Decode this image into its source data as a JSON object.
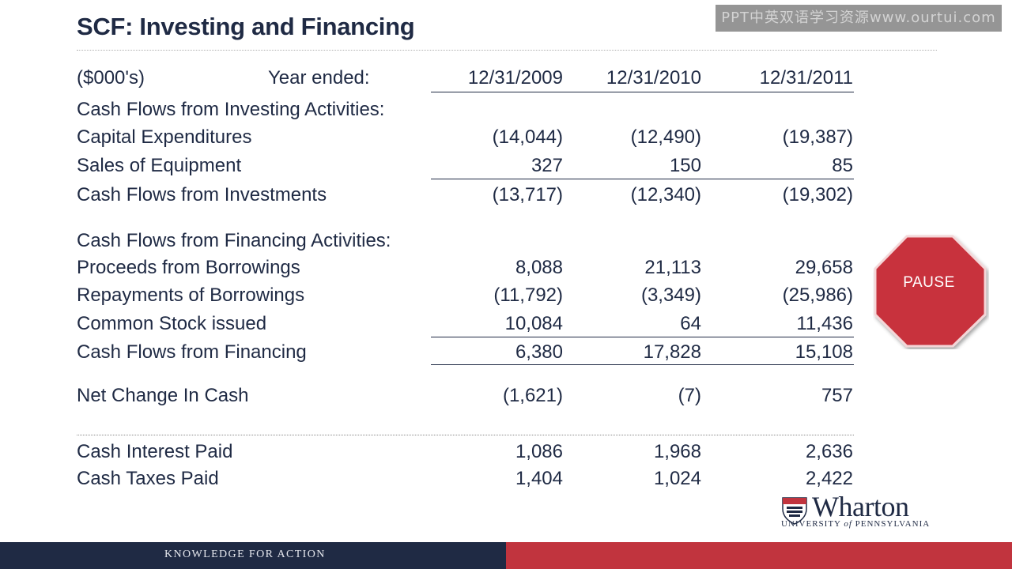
{
  "slide": {
    "title": "SCF: Investing and Financing",
    "watermark": "PPT中英双语学习资源www.ourtui.com",
    "footer_text": "KNOWLEDGE FOR ACTION",
    "pause_label": "PAUSE",
    "logo": {
      "wordmark": "Wharton",
      "sub_prefix": "UNIVERSITY ",
      "sub_of": "of",
      "sub_suffix": " PENNSYLVANIA"
    }
  },
  "table": {
    "header": {
      "units": "($000's)",
      "year_label": "Year ended:",
      "years": [
        "12/31/2009",
        "12/31/2010",
        "12/31/2011"
      ]
    },
    "rows": [
      {
        "label": "Cash Flows from Investing Activities:",
        "values": [
          "",
          "",
          ""
        ]
      },
      {
        "label": "Capital Expenditures",
        "values": [
          "(14,044)",
          "(12,490)",
          "(19,387)"
        ]
      },
      {
        "label": "Sales of Equipment",
        "values": [
          "327",
          "150",
          "85"
        ]
      },
      {
        "label": "Cash Flows from Investments",
        "values": [
          "(13,717)",
          "(12,340)",
          "(19,302)"
        ]
      },
      {
        "label": "Cash Flows from Financing Activities:",
        "values": [
          "",
          "",
          ""
        ]
      },
      {
        "label": "Proceeds from Borrowings",
        "values": [
          "8,088",
          "21,113",
          "29,658"
        ]
      },
      {
        "label": "Repayments of Borrowings",
        "values": [
          "(11,792)",
          "(3,349)",
          "(25,986)"
        ]
      },
      {
        "label": "Common Stock issued",
        "values": [
          "10,084",
          "64",
          "11,436"
        ]
      },
      {
        "label": "Cash Flows from Financing",
        "values": [
          "6,380",
          "17,828",
          "15,108"
        ]
      },
      {
        "label": "Net Change In Cash",
        "values": [
          "(1,621)",
          "(7)",
          "757"
        ]
      },
      {
        "label": "Cash Interest Paid",
        "values": [
          "1,086",
          "1,968",
          "2,636"
        ]
      },
      {
        "label": "Cash Taxes Paid",
        "values": [
          "1,404",
          "1,024",
          "2,422"
        ]
      }
    ]
  },
  "colors": {
    "navy": "#1f2a44",
    "red": "#c1343e",
    "stop_red": "#c8333c"
  }
}
